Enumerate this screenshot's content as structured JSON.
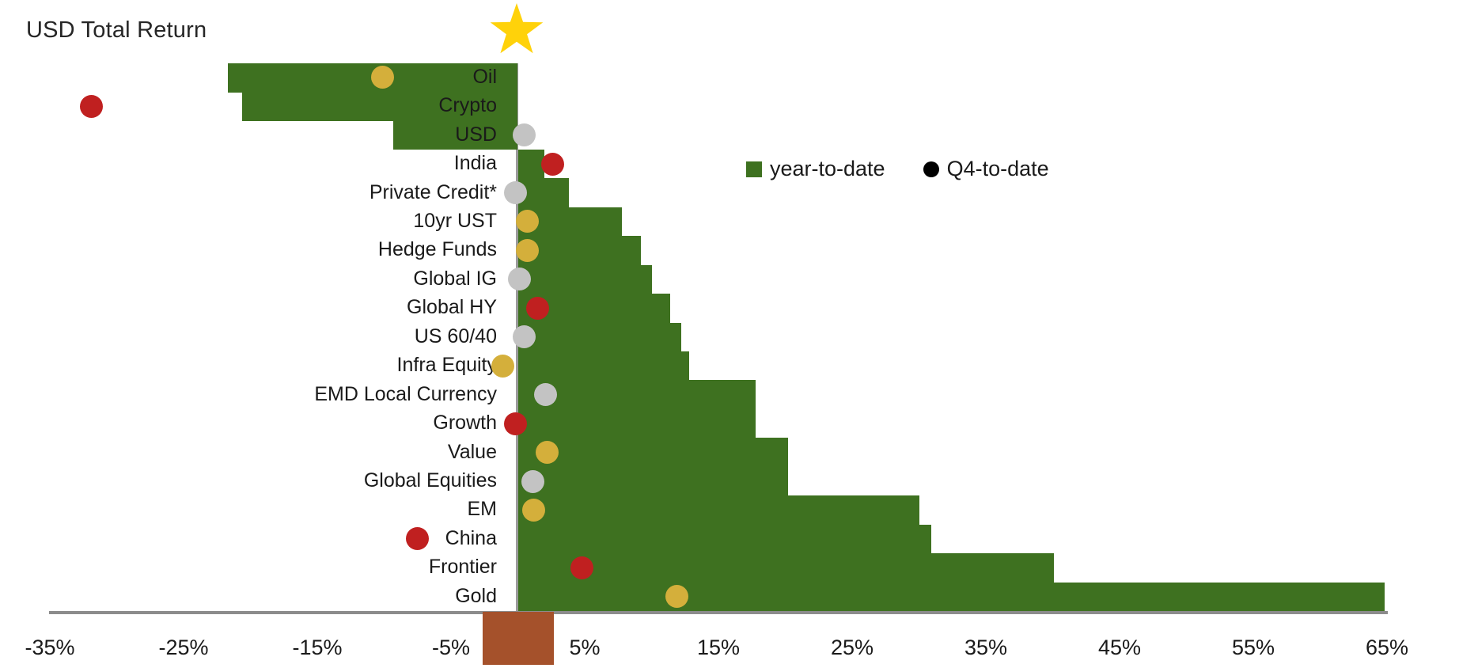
{
  "title": "USD Total Return",
  "legend": {
    "ytd_label": "year-to-date",
    "qtd_label": "Q4-to-date"
  },
  "colors": {
    "bar_green": "#3E7120",
    "dot_red": "#C02020",
    "dot_gold": "#D4AF3B",
    "dot_gray": "#C3C3C3",
    "legend_dot_black": "#000000",
    "trunk_brown": "#A5512B",
    "star_gold": "#FFD20A",
    "axis_gray": "#8C8C8C",
    "center_line_gray": "#9A9A9A",
    "text": "#1a1a1a"
  },
  "chart_data": {
    "type": "bar",
    "orientation": "horizontal",
    "title": "USD Total Return",
    "unit": "%",
    "grid": false,
    "legend_position": "upper-right-of-tree",
    "xlim": [
      -38,
      70
    ],
    "x_ticks": [
      {
        "value": -35,
        "label": "-35%"
      },
      {
        "value": -25,
        "label": "-25%"
      },
      {
        "value": -15,
        "label": "-15%"
      },
      {
        "value": -5,
        "label": "-5%"
      },
      {
        "value": 5,
        "label": "5%"
      },
      {
        "value": 15,
        "label": "15%"
      },
      {
        "value": 25,
        "label": "25%"
      },
      {
        "value": 35,
        "label": "35%"
      },
      {
        "value": 45,
        "label": "45%"
      },
      {
        "value": 55,
        "label": "55%"
      },
      {
        "value": 65,
        "label": "65%"
      }
    ],
    "series": [
      {
        "name": "year-to-date",
        "marker": "bar",
        "color_key": "bar_green"
      },
      {
        "name": "Q4-to-date",
        "marker": "dot",
        "color_key": "varies_by_row"
      }
    ],
    "rows": [
      {
        "label": "Oil",
        "ytd": -21.7,
        "q4": -10.1,
        "q4_color": "gold"
      },
      {
        "label": "Crypto",
        "ytd": -20.6,
        "q4": -31.9,
        "q4_color": "red"
      },
      {
        "label": "USD",
        "ytd": -9.3,
        "q4": 0.5,
        "q4_color": "gray"
      },
      {
        "label": "India",
        "ytd": 2.0,
        "q4": 2.6,
        "q4_color": "red"
      },
      {
        "label": "Private Credit*",
        "ytd": 3.8,
        "q4": -0.2,
        "q4_color": "gray"
      },
      {
        "label": "10yr UST",
        "ytd": 7.8,
        "q4": 0.7,
        "q4_color": "gold"
      },
      {
        "label": "Hedge Funds",
        "ytd": 9.2,
        "q4": 0.7,
        "q4_color": "gold"
      },
      {
        "label": "Global IG",
        "ytd": 10.0,
        "q4": 0.1,
        "q4_color": "gray"
      },
      {
        "label": "Global HY",
        "ytd": 11.4,
        "q4": 1.5,
        "q4_color": "red"
      },
      {
        "label": "US 60/40",
        "ytd": 12.2,
        "q4": 0.5,
        "q4_color": "gray"
      },
      {
        "label": "Infra Equity",
        "ytd": 12.8,
        "q4": -1.1,
        "q4_color": "gold"
      },
      {
        "label": "EMD Local Currency",
        "ytd": 17.8,
        "q4": 2.1,
        "q4_color": "gray"
      },
      {
        "label": "Growth",
        "ytd": 17.8,
        "q4": -0.2,
        "q4_color": "red"
      },
      {
        "label": "Value",
        "ytd": 20.2,
        "q4": 2.2,
        "q4_color": "gold"
      },
      {
        "label": "Global Equities",
        "ytd": 20.2,
        "q4": 1.1,
        "q4_color": "gray"
      },
      {
        "label": "EM",
        "ytd": 30.0,
        "q4": 1.2,
        "q4_color": "gold"
      },
      {
        "label": "China",
        "ytd": 30.9,
        "q4": -7.5,
        "q4_color": "red"
      },
      {
        "label": "Frontier",
        "ytd": 40.1,
        "q4": 4.8,
        "q4_color": "red"
      },
      {
        "label": "Gold",
        "ytd": 64.8,
        "q4": 11.9,
        "q4_color": "gold"
      }
    ],
    "decorations": [
      "gold star tree-topper at top of zero line",
      "brown trunk below axis centered on zero"
    ]
  }
}
